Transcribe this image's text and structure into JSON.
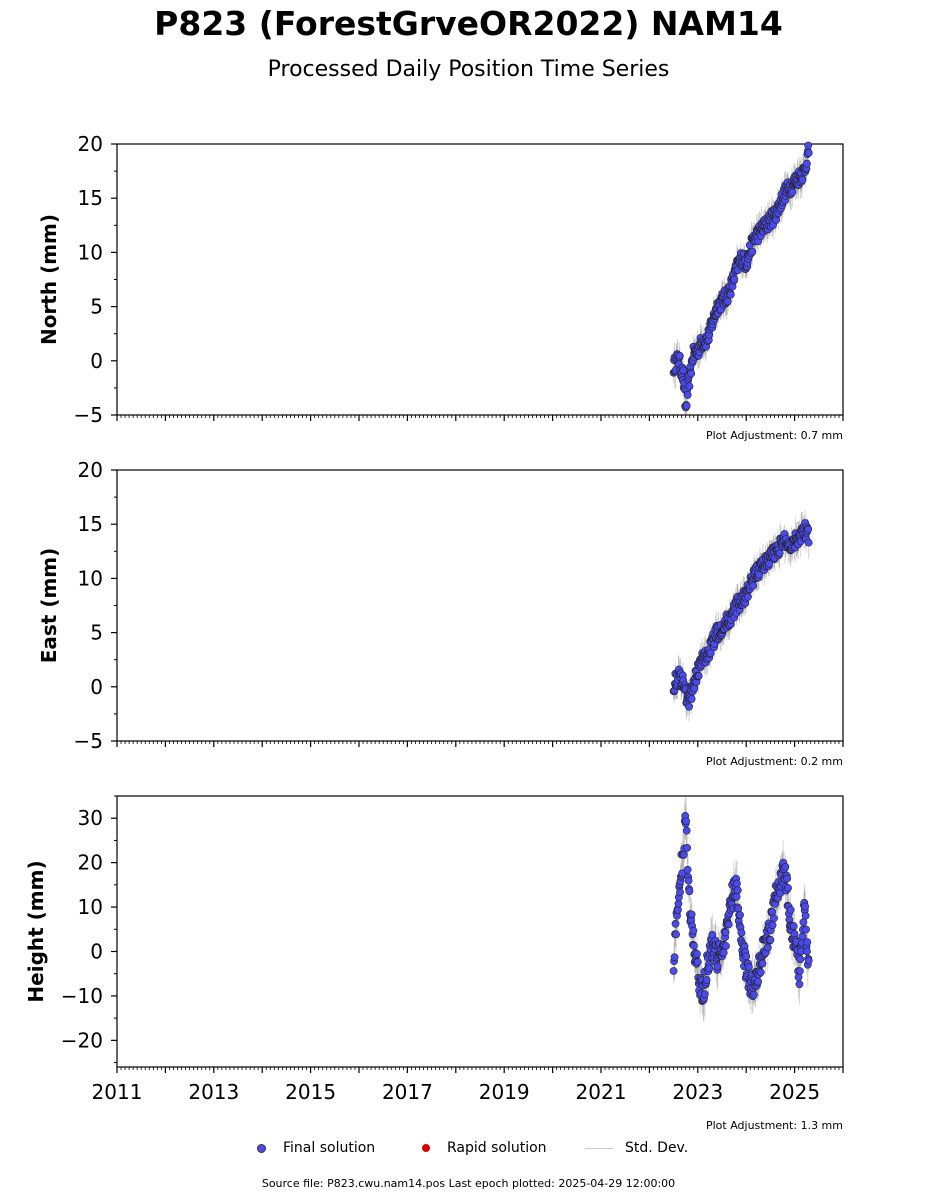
{
  "header": {
    "title": "P823 (ForestGrveOR2022) NAM14",
    "subtitle": "Processed Daily Position Time Series"
  },
  "legend": {
    "final": "Final solution",
    "rapid": "Rapid solution",
    "stddev": "Std. Dev."
  },
  "footer": {
    "source": "Source file: P823.cwu.nam14.pos  Last epoch plotted: 2025-04-29 12:00:00"
  },
  "colors": {
    "final": "#4a4af0",
    "rapid": "#dd0000",
    "stddev": "#c8c8c8",
    "error_band": "#555555"
  },
  "chart_data": [
    {
      "type": "scatter",
      "ylabel": "North (mm)",
      "xlim": [
        2011,
        2026
      ],
      "ylim": [
        -5,
        20
      ],
      "yticks": [
        -5,
        0,
        5,
        10,
        15,
        20
      ],
      "xticks": [
        2011,
        2013,
        2015,
        2017,
        2019,
        2021,
        2023,
        2025
      ],
      "plot_adjustment": "Plot Adjustment: 0.7 mm",
      "show_xtick_labels": false,
      "series": [
        {
          "x": [
            2022.5,
            2022.6,
            2022.7,
            2022.75,
            2022.8,
            2022.9,
            2023.0,
            2023.1,
            2023.2,
            2023.3,
            2023.4,
            2023.5,
            2023.6,
            2023.7,
            2023.8,
            2023.9,
            2024.0,
            2024.1,
            2024.2,
            2024.3,
            2024.4,
            2024.5,
            2024.6,
            2024.7,
            2024.8,
            2024.9,
            2025.0,
            2025.1,
            2025.2,
            2025.3
          ],
          "y": [
            -0.5,
            0.2,
            -1.5,
            -4.5,
            -2.5,
            0.5,
            1.0,
            1.8,
            2.0,
            3.5,
            5.0,
            5.5,
            6.0,
            7.0,
            8.5,
            9.5,
            9.0,
            10.5,
            11.5,
            12.0,
            12.5,
            13.0,
            13.5,
            14.5,
            15.5,
            16.0,
            16.5,
            17.0,
            17.5,
            19.5
          ]
        }
      ]
    },
    {
      "type": "scatter",
      "ylabel": "East (mm)",
      "xlim": [
        2011,
        2026
      ],
      "ylim": [
        -5,
        20
      ],
      "yticks": [
        -5,
        0,
        5,
        10,
        15,
        20
      ],
      "xticks": [
        2011,
        2013,
        2015,
        2017,
        2019,
        2021,
        2023,
        2025
      ],
      "plot_adjustment": "Plot Adjustment: 0.2 mm",
      "show_xtick_labels": false,
      "series": [
        {
          "x": [
            2022.5,
            2022.6,
            2022.7,
            2022.8,
            2022.9,
            2023.0,
            2023.1,
            2023.2,
            2023.3,
            2023.4,
            2023.5,
            2023.6,
            2023.7,
            2023.8,
            2023.9,
            2024.0,
            2024.1,
            2024.2,
            2024.3,
            2024.4,
            2024.5,
            2024.6,
            2024.7,
            2024.8,
            2024.9,
            2025.0,
            2025.1,
            2025.2,
            2025.3
          ],
          "y": [
            0.2,
            1.0,
            0.5,
            -1.5,
            0.0,
            1.5,
            2.5,
            3.0,
            4.0,
            5.0,
            5.5,
            6.0,
            6.5,
            7.5,
            8.0,
            8.5,
            9.5,
            10.5,
            11.0,
            11.5,
            12.0,
            12.5,
            13.0,
            13.5,
            13.0,
            13.5,
            14.0,
            14.5,
            14.0
          ]
        }
      ]
    },
    {
      "type": "scatter",
      "ylabel": "Height (mm)",
      "xlim": [
        2011,
        2026
      ],
      "ylim": [
        -26,
        35
      ],
      "yticks": [
        -20,
        -10,
        0,
        10,
        20,
        30
      ],
      "xticks": [
        2011,
        2013,
        2015,
        2017,
        2019,
        2021,
        2023,
        2025
      ],
      "plot_adjustment": "Plot Adjustment: 1.3 mm",
      "show_xtick_labels": true,
      "series": [
        {
          "x": [
            2022.5,
            2022.55,
            2022.6,
            2022.65,
            2022.7,
            2022.75,
            2022.8,
            2022.9,
            2023.0,
            2023.1,
            2023.2,
            2023.3,
            2023.4,
            2023.5,
            2023.6,
            2023.7,
            2023.8,
            2023.9,
            2024.0,
            2024.1,
            2024.2,
            2024.3,
            2024.4,
            2024.5,
            2024.6,
            2024.7,
            2024.8,
            2024.9,
            2025.0,
            2025.1,
            2025.2,
            2025.3
          ],
          "y": [
            -2.0,
            5.0,
            12.0,
            18.0,
            22.0,
            30.5,
            15.0,
            3.0,
            -5.0,
            -10.0,
            -3.0,
            2.0,
            -2.0,
            0.0,
            5.0,
            12.0,
            14.0,
            3.0,
            -4.0,
            -8.0,
            -6.0,
            -2.0,
            2.0,
            5.0,
            12.0,
            16.0,
            18.0,
            8.0,
            2.0,
            -5.0,
            10.0,
            -4.0
          ]
        }
      ]
    }
  ]
}
